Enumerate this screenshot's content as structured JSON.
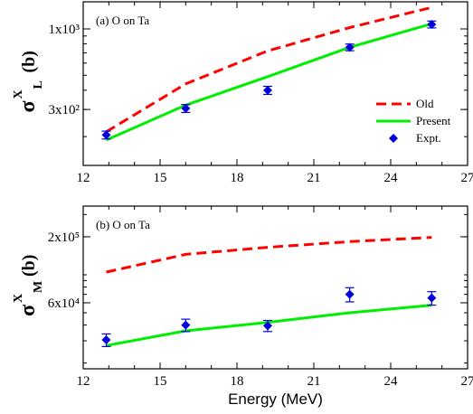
{
  "chart_data": [
    {
      "type": "line",
      "panel_label": "(a) O on Ta",
      "ylabel": {
        "main": "σ",
        "sup": "X",
        "sub": "L",
        "unit": "(b)"
      },
      "xlim": [
        12,
        27
      ],
      "xticks": [
        12,
        15,
        18,
        21,
        24,
        27
      ],
      "xtick_labels": [
        "12",
        "15",
        "18",
        "21",
        "24",
        "27"
      ],
      "ylim": [
        130,
        1500
      ],
      "yscale": "log",
      "yticks": [
        300,
        1000
      ],
      "ytick_labels": [
        "3x10²",
        "1x10³"
      ],
      "grid": false,
      "legend_position": "right",
      "series": [
        {
          "name": "Old",
          "kind": "line",
          "style": "dashed",
          "color": "#ff0000",
          "x": [
            12.9,
            16,
            19.2,
            22.4,
            25.6
          ],
          "y": [
            215,
            440,
            720,
            1020,
            1380
          ]
        },
        {
          "name": "Present",
          "kind": "line",
          "style": "solid",
          "color": "#00ee00",
          "x": [
            12.9,
            16,
            19.2,
            22.4,
            25.6
          ],
          "y": [
            190,
            320,
            490,
            760,
            1080
          ]
        },
        {
          "name": "Expt.",
          "kind": "points",
          "marker": "diamond",
          "color": "#0000dd",
          "x": [
            12.9,
            16,
            19.2,
            22.4,
            25.6
          ],
          "y": [
            205,
            305,
            400,
            760,
            1070
          ],
          "err": [
            12,
            18,
            24,
            38,
            55
          ]
        }
      ]
    },
    {
      "type": "line",
      "panel_label": "(b) O on Ta",
      "ylabel": {
        "main": "σ",
        "sup": "X",
        "sub": "M",
        "unit": "(b)"
      },
      "xlabel": "Energy (MeV)",
      "xlim": [
        12,
        27
      ],
      "xticks": [
        12,
        15,
        18,
        21,
        24,
        27
      ],
      "xtick_labels": [
        "12",
        "15",
        "18",
        "21",
        "24",
        "27"
      ],
      "ylim": [
        18000,
        350000
      ],
      "yscale": "log",
      "yticks": [
        60000,
        200000
      ],
      "ytick_labels": [
        "6x10⁴",
        "2x10⁵"
      ],
      "grid": false,
      "series": [
        {
          "name": "Old",
          "kind": "line",
          "style": "dashed",
          "color": "#ff0000",
          "x": [
            12.9,
            16,
            19.2,
            22.4,
            25.6
          ],
          "y": [
            105000,
            145000,
            165000,
            183000,
            198000
          ]
        },
        {
          "name": "Present",
          "kind": "line",
          "style": "solid",
          "color": "#00ee00",
          "x": [
            12.9,
            16,
            19.2,
            22.4,
            25.6
          ],
          "y": [
            27500,
            36000,
            42000,
            50000,
            57500
          ]
        },
        {
          "name": "Expt.",
          "kind": "points",
          "marker": "diamond",
          "color": "#0000dd",
          "x": [
            12.9,
            16,
            19.2,
            22.4,
            25.6
          ],
          "y": [
            30500,
            40000,
            39500,
            70000,
            65500
          ],
          "err": [
            3500,
            4500,
            4000,
            9000,
            8000
          ]
        }
      ]
    }
  ]
}
